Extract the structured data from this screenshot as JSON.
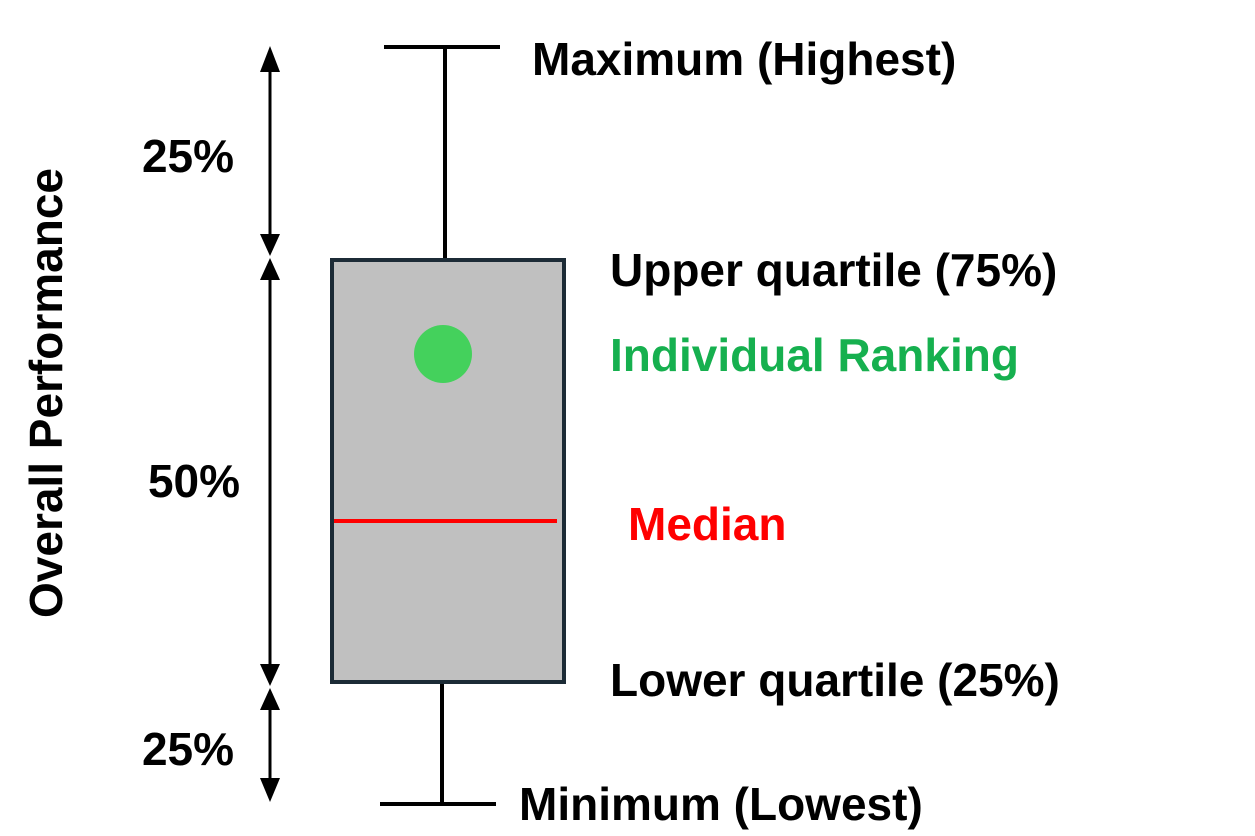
{
  "axis_label": "Overall Performance",
  "percent_labels": {
    "top": "25%",
    "middle": "50%",
    "bottom": "25%"
  },
  "annotations": {
    "maximum": "Maximum (Highest)",
    "upper_quartile": "Upper quartile (75%)",
    "individual_ranking": "Individual Ranking",
    "median": "Median",
    "lower_quartile": "Lower quartile (25%)",
    "minimum": "Minimum (Lowest)"
  },
  "colors": {
    "box_fill": "#c0c0c0",
    "box_stroke": "#1c2b36",
    "median": "#ff0000",
    "individual_point": "#44d15c",
    "individual_label": "#16b04f",
    "text": "#000000"
  }
}
